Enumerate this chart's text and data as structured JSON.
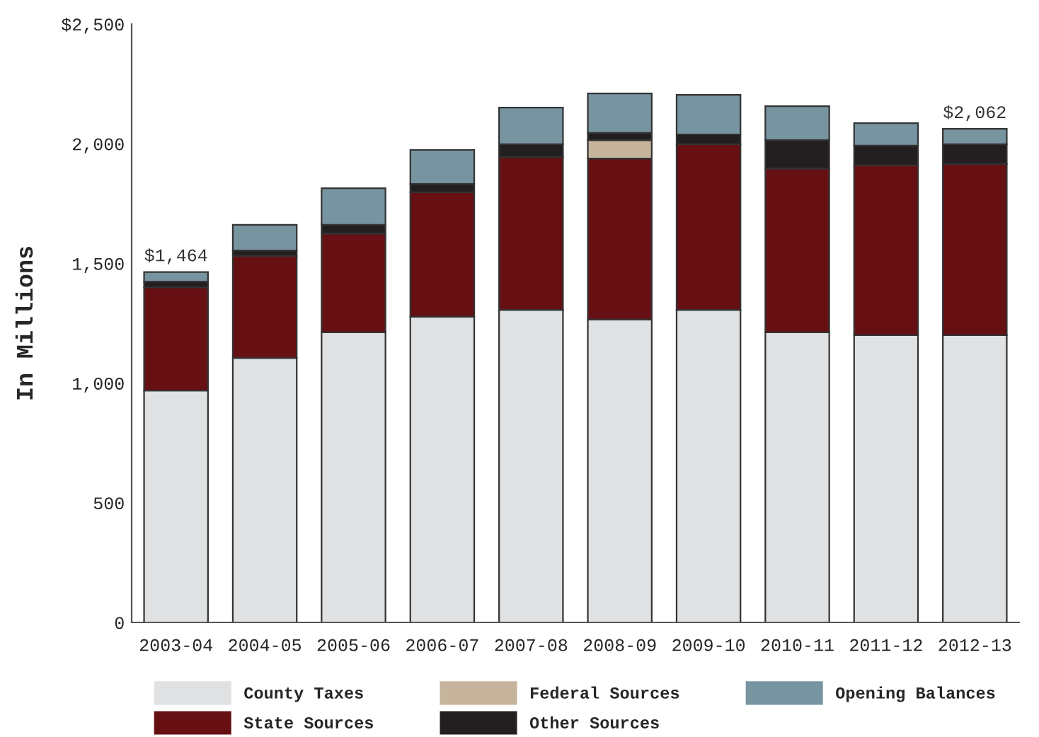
{
  "chart_data": {
    "type": "bar",
    "stacked": true,
    "ylabel": "In Millions",
    "categories": [
      "2003-04",
      "2004-05",
      "2005-06",
      "2006-07",
      "2007-08",
      "2008-09",
      "2009-10",
      "2010-11",
      "2011-12",
      "2012-13"
    ],
    "series": [
      {
        "name": "County Taxes",
        "color": "#e0e1e3",
        "values": [
          969,
          1105,
          1212,
          1277,
          1306,
          1265,
          1306,
          1212,
          1200,
          1200
        ]
      },
      {
        "name": "State Sources",
        "color": "#661014",
        "values": [
          431,
          426,
          413,
          520,
          638,
          673,
          692,
          685,
          709,
          715
        ]
      },
      {
        "name": "Federal Sources",
        "color": "#c6b59c",
        "values": [
          0,
          0,
          0,
          0,
          0,
          77,
          0,
          0,
          0,
          0
        ]
      },
      {
        "name": "Other Sources",
        "color": "#231f20",
        "values": [
          24,
          23,
          36,
          35,
          54,
          30,
          41,
          118,
          83,
          83
        ]
      },
      {
        "name": "Opening Balances",
        "color": "#7794a1",
        "values": [
          40,
          107,
          153,
          142,
          153,
          165,
          165,
          142,
          94,
          64
        ]
      }
    ],
    "totals": [
      "$1,464",
      null,
      null,
      null,
      null,
      null,
      null,
      null,
      null,
      "$2,062"
    ],
    "ylim": [
      0,
      2500
    ],
    "yticks": [
      0,
      500,
      {
        "value": 1000,
        "label": "1,000"
      },
      {
        "value": 1500,
        "label": "1,500"
      },
      {
        "value": 2000,
        "label": "2,000"
      },
      {
        "value": 2500,
        "label": "$2,500"
      }
    ],
    "grid": false,
    "legend": "bottom"
  }
}
